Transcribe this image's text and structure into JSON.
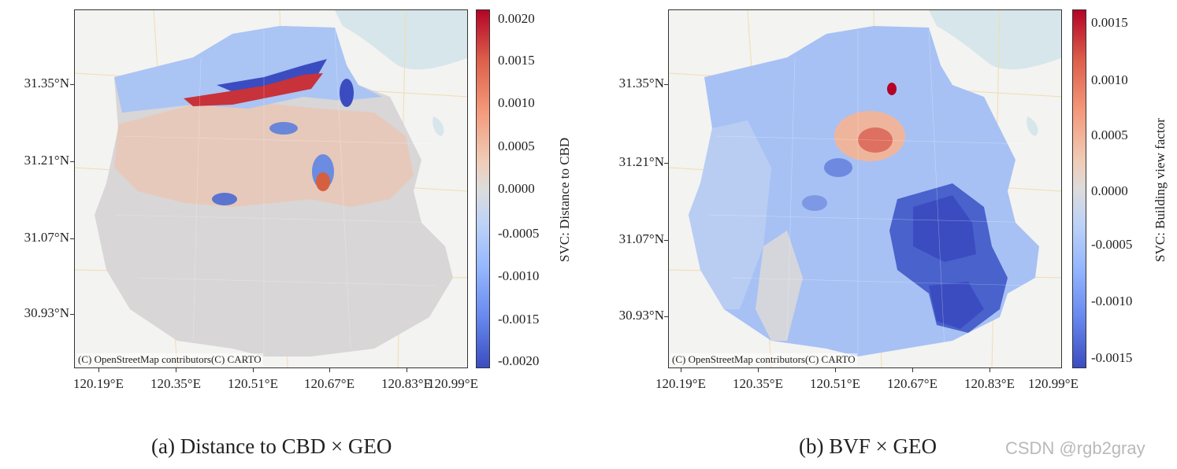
{
  "panels": [
    {
      "id": "a",
      "caption": "(a) Distance to CBD × GEO",
      "colorbar_label": "SVC: Distance to CBD",
      "colorbar_ticks": [
        "0.0020",
        "0.0015",
        "0.0010",
        "0.0005",
        "0.0000",
        "-0.0005",
        "-0.0010",
        "-0.0015",
        "-0.0020"
      ],
      "attribution": "(C) OpenStreetMap contributors(C) CARTO",
      "colors": {
        "high": "#b40426",
        "mid": "#dddcdc",
        "low": "#3b4cc0"
      }
    },
    {
      "id": "b",
      "caption": "(b) BVF × GEO",
      "colorbar_label": "SVC: Building view factor",
      "colorbar_ticks": [
        "0.0015",
        "0.0010",
        "0.0005",
        "0.0000",
        "-0.0005",
        "-0.0010",
        "-0.0015"
      ],
      "attribution": "(C) OpenStreetMap contributors(C) CARTO",
      "colors": {
        "high": "#b40426",
        "mid": "#dddcdc",
        "low": "#3b4cc0"
      }
    }
  ],
  "axes": {
    "y_ticks": [
      "31.35°N",
      "31.21°N",
      "31.07°N",
      "30.93°N"
    ],
    "x_ticks": [
      "120.19°E",
      "120.35°E",
      "120.51°E",
      "120.67°E",
      "120.83°E",
      "120.99°E"
    ]
  },
  "watermark": "CSDN @rgb2gray"
}
